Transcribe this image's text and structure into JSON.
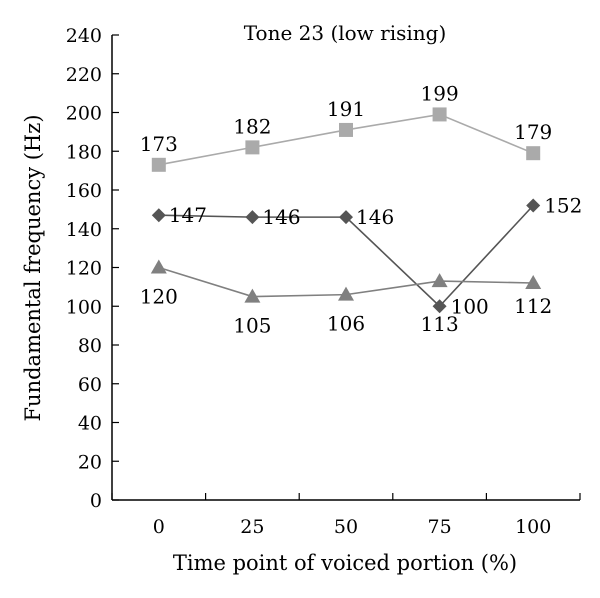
{
  "chart_data": {
    "type": "line",
    "title": "Tone 23 (low rising)",
    "xlabel": "Time point of voiced portion (%)",
    "ylabel": "Fundamental frequency (Hz)",
    "categories": [
      "0",
      "25",
      "50",
      "75",
      "100"
    ],
    "ylim": [
      0,
      240
    ],
    "yticks": [
      0,
      20,
      40,
      60,
      80,
      100,
      120,
      140,
      160,
      180,
      200,
      220,
      240
    ],
    "grid": false,
    "legend": "none",
    "series": [
      {
        "marker": "square",
        "color": "#aaaaaa",
        "values": [
          173,
          182,
          191,
          199,
          179
        ],
        "labels": [
          "173",
          "182",
          "191",
          "199",
          "179"
        ]
      },
      {
        "marker": "diamond",
        "color": "#555555",
        "values": [
          147,
          146,
          146,
          100,
          152
        ],
        "labels": [
          "147",
          "146",
          "146",
          "100",
          "152"
        ]
      },
      {
        "marker": "triangle",
        "color": "#808080",
        "values": [
          120,
          105,
          106,
          113,
          112
        ],
        "labels": [
          "120",
          "105",
          "106",
          "113",
          "112"
        ]
      }
    ]
  }
}
